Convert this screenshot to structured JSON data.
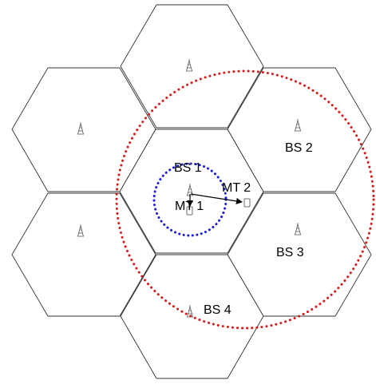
{
  "diagram": {
    "labels": {
      "bs1": "BS 1",
      "bs2": "BS 2",
      "bs3": "BS 3",
      "bs4": "BS 4",
      "mt1": "MT 1",
      "mt2": "MT 2"
    },
    "colors": {
      "cell_border": "#333333",
      "inner_range_circle": "#1a1adb",
      "outer_range_circle": "#d61a1a",
      "link_arrow": "#000000"
    },
    "icons": {
      "base_station": "antenna-tower-icon",
      "mobile_terminal": "handset-icon"
    }
  }
}
